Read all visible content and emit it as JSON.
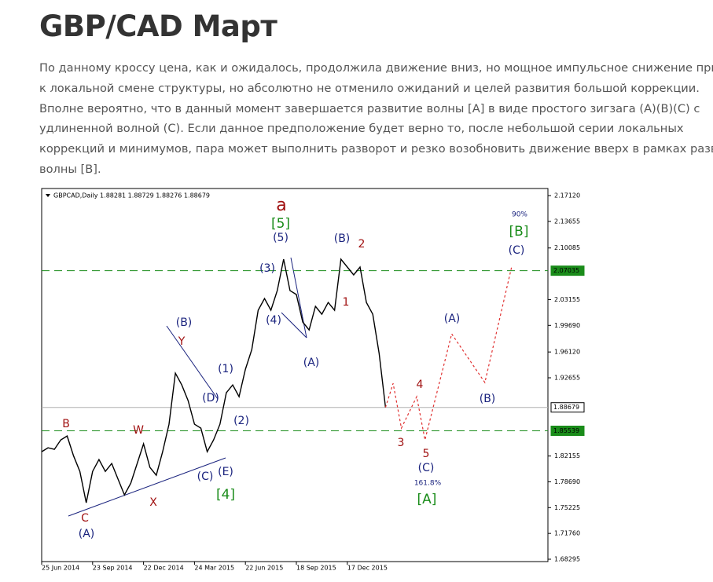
{
  "header": {
    "title": "GBP/CAD Март"
  },
  "article": {
    "lines": [
      "По данному кроссу цена, как и ожидалось, продолжила движение вниз, но мощное импульсное снижение  привело",
      "к локальной смене структуры, но абсолютно не отменило ожиданий и целей развития большой коррекции.",
      "Вполне вероятно, что в данный момент завершается развитие волны [A] в виде простого зигзага (A)(B)(C) с",
      "удлиненной волной (C). Если данное предположение будет верно то, после небольшой серии локальных",
      "коррекций и минимумов, пара может выполнить разворот и резко возобновить движение вверх в рамках развития",
      "волны [B]."
    ]
  },
  "chart_data": {
    "type": "line",
    "header": "GBPCAD,Daily  1.88281 1.88729 1.88276 1.88679",
    "categories": [
      "25 Jun 2014",
      null,
      null,
      null,
      null,
      null,
      null,
      null,
      "23 Sep 2014",
      null,
      null,
      null,
      null,
      null,
      null,
      null,
      "22 Dec 2014",
      null,
      null,
      null,
      null,
      null,
      null,
      null,
      "24 Mar 2015",
      null,
      null,
      null,
      null,
      null,
      null,
      null,
      "22 Jun 2015",
      null,
      null,
      null,
      null,
      null,
      null,
      null,
      "18 Sep 2015",
      null,
      null,
      null,
      null,
      null,
      null,
      null,
      "17 Dec 2015",
      null,
      null,
      null,
      null,
      null,
      null
    ],
    "series": [
      {
        "name": "GBPCAD",
        "color": "#000000",
        "values": [
          1.8273,
          1.8326,
          1.8305,
          1.8431,
          1.8484,
          1.822,
          1.8009,
          1.7588,
          1.8009,
          1.8168,
          1.8009,
          1.8115,
          1.7904,
          1.7693,
          1.7851,
          1.8115,
          1.8379,
          1.8062,
          1.7957,
          1.8273,
          1.8642,
          1.9328,
          1.917,
          1.8959,
          1.8642,
          1.859,
          1.8273,
          1.8431,
          1.8642,
          1.9064,
          1.917,
          1.9012,
          1.9381,
          1.9644,
          2.0172,
          2.033,
          2.0172,
          2.0436,
          2.0858,
          2.0436,
          2.0383,
          2.0014,
          1.9908,
          2.0225,
          2.0119,
          2.0277,
          2.0172,
          2.0858,
          2.0752,
          2.0647,
          2.0752,
          2.0277,
          2.0119,
          1.9592,
          1.88679
        ]
      },
      {
        "name": "projection",
        "color": "#e03030",
        "x": [
          54,
          55.2,
          56.5,
          58.9,
          60.2,
          64.4,
          69.6,
          73.8
        ],
        "values": [
          1.88679,
          1.9191,
          1.859,
          1.9012,
          1.8431,
          1.9855,
          1.9202,
          2.0752
        ]
      }
    ],
    "ylim": [
      1.6798,
      2.1807
    ],
    "yticks": [
      {
        "value": 2.1712,
        "label": "2.17120"
      },
      2.13655,
      2.10085,
      2.03155,
      {
        "value": 1.9969,
        "label": "1.99690"
      },
      {
        "value": 1.9612,
        "label": "1.96120"
      },
      1.92655,
      1.82155,
      {
        "value": 1.7869,
        "label": "1.78690"
      },
      1.75225,
      {
        "value": 1.7176,
        "label": "1.71760"
      },
      1.68295
    ],
    "hlines": [
      {
        "value": 2.07035,
        "label": "2.07035",
        "color": "#1a8c1a",
        "dashed": true
      },
      {
        "value": 1.88679,
        "label": "1.88679",
        "color": "#b0b0b0",
        "dashed": false
      },
      {
        "value": 1.85539,
        "label": "1.85539",
        "color": "#1a8c1a",
        "dashed": true
      }
    ],
    "annotations": [
      {
        "text": "a",
        "color": "#a01010"
      },
      {
        "text": "[5]",
        "color": "#1a8c1a"
      },
      {
        "text": "(5)",
        "color": "#1a237e"
      },
      {
        "text": "(3)",
        "color": "#1a237e"
      },
      {
        "text": "(4)",
        "color": "#1a237e"
      },
      {
        "text": "(A)",
        "color": "#1a237e"
      },
      {
        "text": "(B)",
        "color": "#1a237e"
      },
      {
        "text": "2",
        "color": "#a01010"
      },
      {
        "text": "1",
        "color": "#a01010"
      },
      {
        "text": "(1)",
        "color": "#1a237e"
      },
      {
        "text": "(2)",
        "color": "#1a237e"
      },
      {
        "text": "(D)",
        "color": "#1a237e"
      },
      {
        "text": "(B)",
        "color": "#1a237e"
      },
      {
        "text": "Y",
        "color": "#a01010"
      },
      {
        "text": "W",
        "color": "#a01010"
      },
      {
        "text": "B",
        "color": "#a01010"
      },
      {
        "text": "X",
        "color": "#a01010"
      },
      {
        "text": "C",
        "color": "#a01010"
      },
      {
        "text": "(A)",
        "color": "#1a237e"
      },
      {
        "text": "(C)",
        "color": "#1a237e"
      },
      {
        "text": "(E)",
        "color": "#1a237e"
      },
      {
        "text": "[4]",
        "color": "#1a8c1a"
      },
      {
        "text": "3",
        "color": "#a01010"
      },
      {
        "text": "4",
        "color": "#a01010"
      },
      {
        "text": "5",
        "color": "#a01010"
      },
      {
        "text": "(C)",
        "color": "#1a237e"
      },
      {
        "text": "161.8%",
        "color": "#1a237e"
      },
      {
        "text": "[A]",
        "color": "#1a8c1a"
      },
      {
        "text": "(A)",
        "color": "#1a237e"
      },
      {
        "text": "(B)",
        "color": "#1a237e"
      },
      {
        "text": "(C)",
        "color": "#1a237e"
      },
      {
        "text": "[B]",
        "color": "#1a8c1a"
      },
      {
        "text": "90%",
        "color": "#1a237e"
      }
    ]
  }
}
